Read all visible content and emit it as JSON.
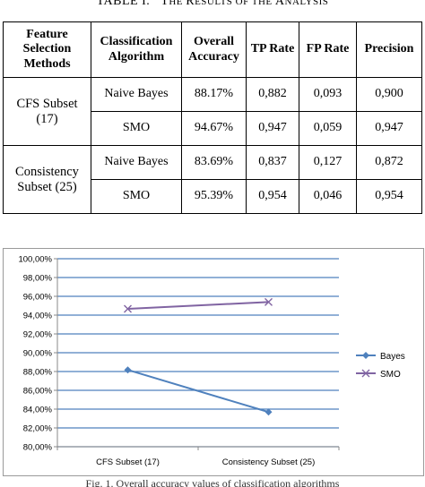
{
  "table": {
    "caption_label": "TABLE I.",
    "caption_title_parts": [
      {
        "text": "T",
        "small": false
      },
      {
        "text": "HE ",
        "small": true
      },
      {
        "text": "R",
        "small": false
      },
      {
        "text": "ESULTS OF THE ",
        "small": true
      },
      {
        "text": "A",
        "small": false
      },
      {
        "text": "NALYSIS",
        "small": true
      }
    ],
    "headers": [
      "Feature Selection Methods",
      "Classification Algorithm",
      "Overall Accuracy",
      "TP Rate",
      "FP Rate",
      "Precision"
    ],
    "groups": [
      {
        "label": "CFS Subset (17)",
        "rows": [
          {
            "algorithm": "Naive Bayes",
            "accuracy": "88.17%",
            "tp": "0,882",
            "fp": "0,093",
            "precision": "0,900"
          },
          {
            "algorithm": "SMO",
            "accuracy": "94.67%",
            "tp": "0,947",
            "fp": "0,059",
            "precision": "0,947"
          }
        ]
      },
      {
        "label": "Consistency Subset (25)",
        "rows": [
          {
            "algorithm": "Naive Bayes",
            "accuracy": "83.69%",
            "tp": "0,837",
            "fp": "0,127",
            "precision": "0,872"
          },
          {
            "algorithm": "SMO",
            "accuracy": "95.39%",
            "tp": "0,954",
            "fp": "0,046",
            "precision": "0,954"
          }
        ]
      }
    ]
  },
  "chart_data": {
    "type": "line",
    "categories": [
      "CFS Subset (17)",
      "Consistency Subset (25)"
    ],
    "series": [
      {
        "name": "Bayes",
        "values": [
          88.17,
          83.69
        ],
        "color": "#4f81bd",
        "marker": "diamond"
      },
      {
        "name": "SMO",
        "values": [
          94.67,
          95.39
        ],
        "color": "#8064a2",
        "marker": "x"
      }
    ],
    "ylim": [
      80,
      100
    ],
    "ytick_step": 2,
    "ytick_labels": [
      "80,00%",
      "82,00%",
      "84,00%",
      "86,00%",
      "88,00%",
      "90,00%",
      "92,00%",
      "94,00%",
      "96,00%",
      "98,00%",
      "100,00%"
    ],
    "grid": true,
    "legend": "right",
    "gridline_color": "#4f81bd",
    "title": "",
    "xlabel": "",
    "ylabel": ""
  },
  "figure_caption": "Fig. 1. Overall accuracy values of classification algorithms"
}
